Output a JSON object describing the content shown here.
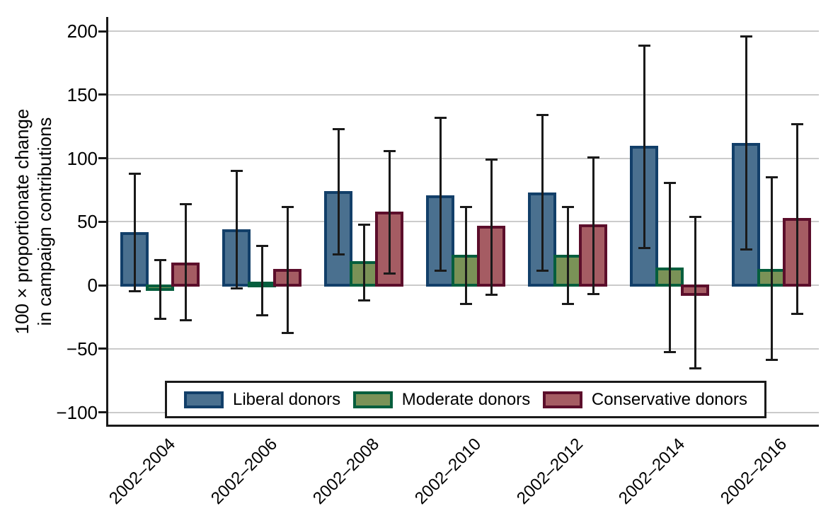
{
  "figure": {
    "ylabel_line1": "100 × proportionate change",
    "ylabel_line2": "in campaign contributions"
  },
  "chart_data": {
    "type": "bar",
    "title": "",
    "xlabel": "",
    "ylabel": "100 × proportionate change in campaign contributions",
    "categories": [
      "2002–2004",
      "2002–2006",
      "2002–2008",
      "2002–2010",
      "2002–2012",
      "2002–2014",
      "2002–2016"
    ],
    "y_ticks": [
      200,
      150,
      100,
      50,
      0,
      -50,
      -100
    ],
    "ylim": [
      -110,
      210
    ],
    "grid": true,
    "legend_position": "bottom-inside",
    "error_bars": true,
    "colors": {
      "axis": "#1a1a1a",
      "gridline": "#cbcbcb",
      "background": "#ffffff"
    },
    "series": [
      {
        "name": "Liberal donors",
        "fill": "#4a708f",
        "border": "#123f69",
        "values": [
          42,
          44,
          74,
          71,
          73,
          110,
          112
        ],
        "ci_low": [
          -5,
          -3,
          24,
          11,
          11,
          29,
          28
        ],
        "ci_high": [
          88,
          90,
          123,
          132,
          134,
          189,
          196
        ]
      },
      {
        "name": "Moderate donors",
        "fill": "#7a9257",
        "border": "#055e3d",
        "values": [
          -4,
          3,
          19,
          24,
          24,
          14,
          13
        ],
        "ci_low": [
          -27,
          -24,
          -12,
          -15,
          -15,
          -53,
          -59
        ],
        "ci_high": [
          20,
          31,
          48,
          62,
          62,
          81,
          85
        ]
      },
      {
        "name": "Conservative donors",
        "fill": "#a55c63",
        "border": "#5c0e2b",
        "values": [
          18,
          13,
          58,
          47,
          48,
          -8,
          53
        ],
        "ci_low": [
          -28,
          -38,
          9,
          -8,
          -7,
          -66,
          -23
        ],
        "ci_high": [
          64,
          62,
          106,
          99,
          101,
          54,
          127
        ]
      }
    ]
  }
}
